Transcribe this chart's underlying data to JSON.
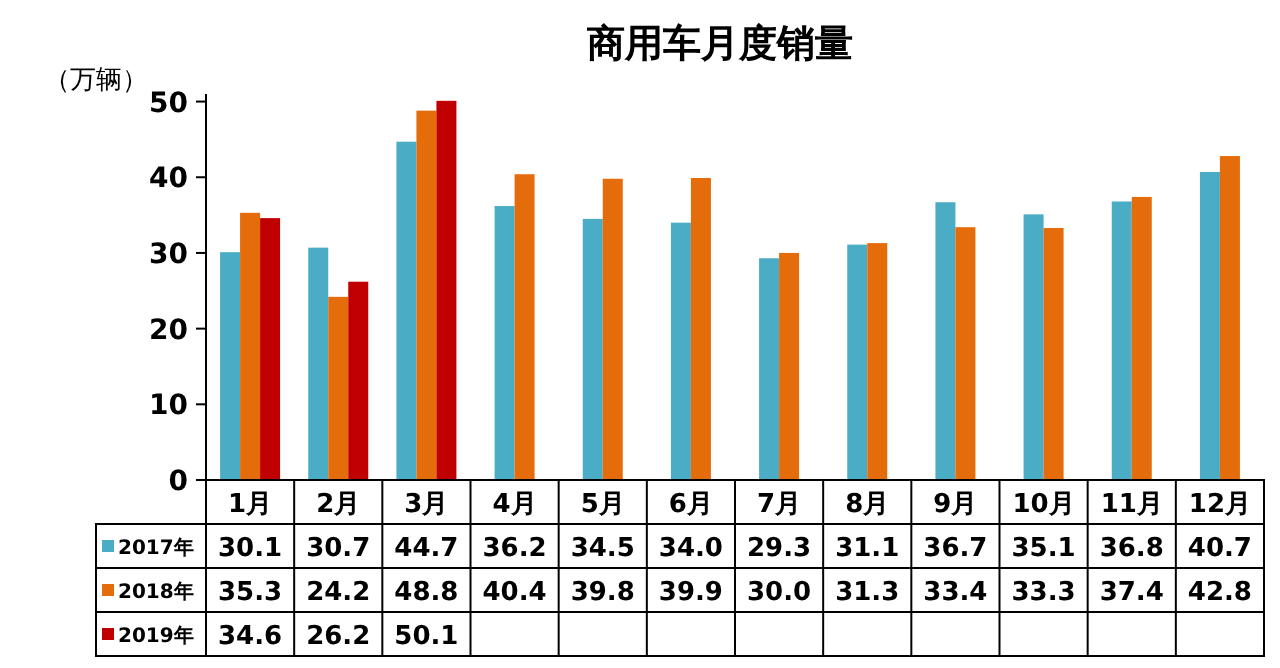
{
  "chart_data": {
    "type": "bar",
    "title": "商用车月度销量",
    "ylabel": "（万辆）",
    "categories": [
      "1月",
      "2月",
      "3月",
      "4月",
      "5月",
      "6月",
      "7月",
      "8月",
      "9月",
      "10月",
      "11月",
      "12月"
    ],
    "series": [
      {
        "name": "2017年",
        "color": "#4bacc6",
        "values": [
          30.1,
          30.7,
          44.7,
          36.2,
          34.5,
          34.0,
          29.3,
          31.1,
          36.7,
          35.1,
          36.8,
          40.7
        ],
        "value_labels": [
          "30.1",
          "30.7",
          "44.7",
          "36.2",
          "34.5",
          "34.0",
          "29.3",
          "31.1",
          "36.7",
          "35.1",
          "36.8",
          "40.7"
        ]
      },
      {
        "name": "2018年",
        "color": "#e46c0a",
        "values": [
          35.3,
          24.2,
          48.8,
          40.4,
          39.8,
          39.9,
          30.0,
          31.3,
          33.4,
          33.3,
          37.4,
          42.8
        ],
        "value_labels": [
          "35.3",
          "24.2",
          "48.8",
          "40.4",
          "39.8",
          "39.9",
          "30.0",
          "31.3",
          "33.4",
          "33.3",
          "37.4",
          "42.8"
        ]
      },
      {
        "name": "2019年",
        "color": "#c00000",
        "values": [
          34.6,
          26.2,
          50.1,
          null,
          null,
          null,
          null,
          null,
          null,
          null,
          null,
          null
        ],
        "value_labels": [
          "34.6",
          "26.2",
          "50.1",
          null,
          null,
          null,
          null,
          null,
          null,
          null,
          null,
          null
        ]
      }
    ],
    "ylim": [
      0,
      51
    ],
    "yticks": [
      0,
      10,
      20,
      30,
      40,
      50
    ],
    "legend": "bottom left",
    "grid": false
  }
}
